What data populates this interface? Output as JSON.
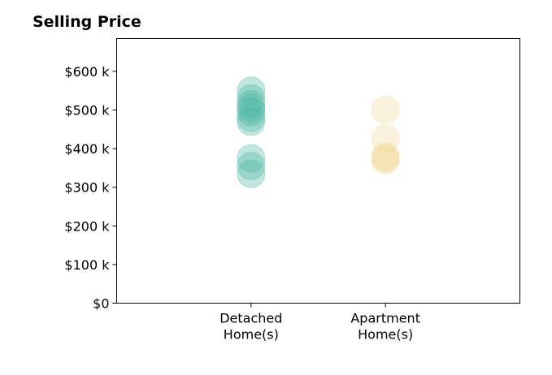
{
  "chart_data": {
    "type": "scatter",
    "title": "Selling Price",
    "categories": [
      "Detached\nHome(s)",
      "Apartment\nHome(s)"
    ],
    "series": [
      {
        "category": "Detached\nHome(s)",
        "values": [
          550000,
          530000,
          515000,
          505000,
          495000,
          480000,
          470000,
          375000,
          355000,
          335000
        ],
        "color": "#4db6a4"
      },
      {
        "category": "Apartment\nHome(s)",
        "values": [
          500000,
          425000,
          380000,
          375000,
          370000
        ],
        "color": "#f0d99a"
      }
    ],
    "y_ticks": [
      {
        "value": 0,
        "label": "$0"
      },
      {
        "value": 100000,
        "label": "$100 k"
      },
      {
        "value": 200000,
        "label": "$200 k"
      },
      {
        "value": 300000,
        "label": "$300 k"
      },
      {
        "value": 400000,
        "label": "$400 k"
      },
      {
        "value": 500000,
        "label": "$500 k"
      },
      {
        "value": 600000,
        "label": "$600 k"
      }
    ],
    "ylim": [
      0,
      685000
    ],
    "xlim": [
      -1,
      2
    ],
    "grid": false,
    "xlabel": "",
    "ylabel": ""
  }
}
